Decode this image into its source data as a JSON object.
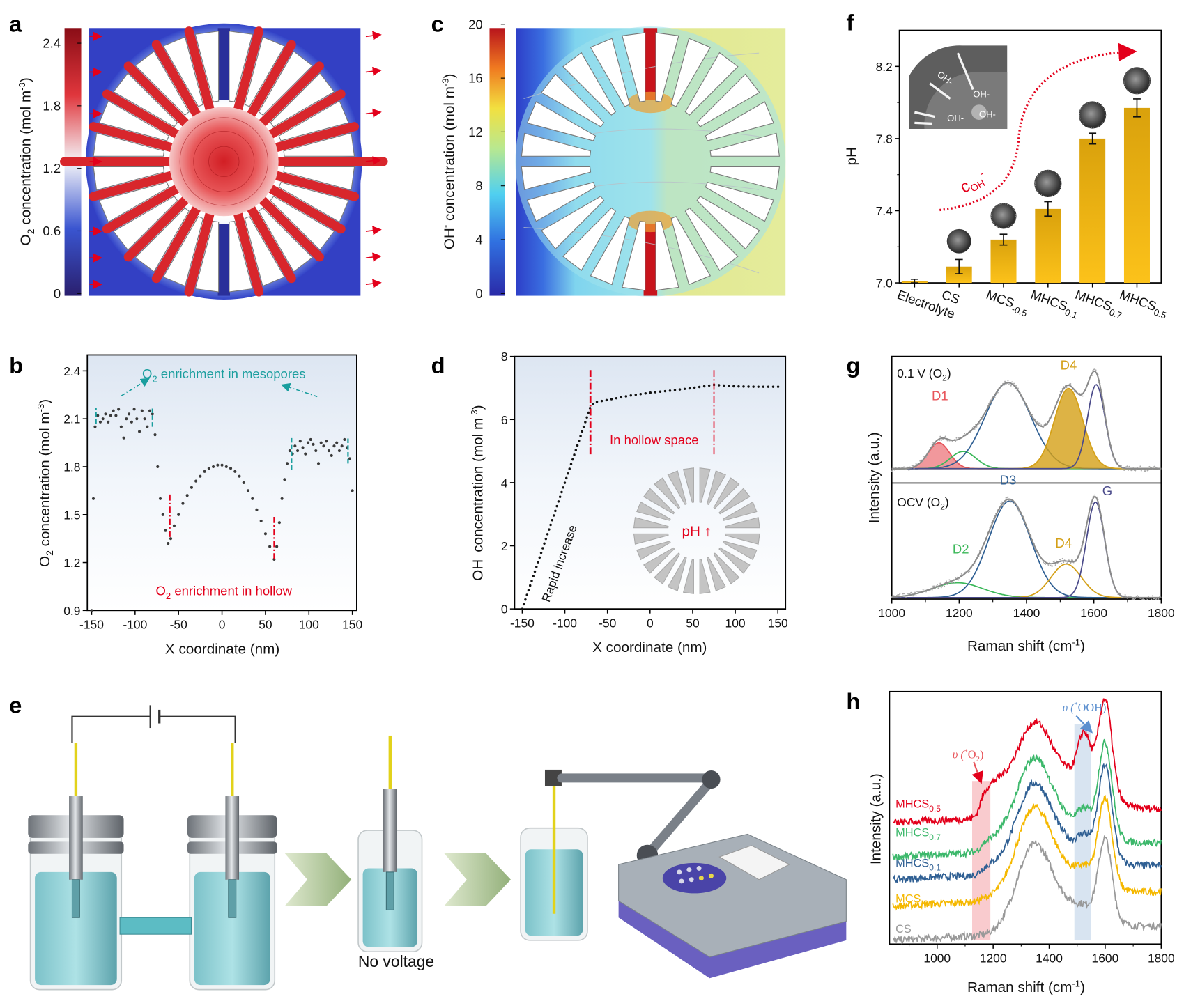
{
  "panel_labels": {
    "a": "a",
    "b": "b",
    "c": "c",
    "d": "d",
    "e": "e",
    "f": "f",
    "g": "g",
    "h": "h"
  },
  "colors": {
    "red": "#e3001b",
    "teal": "#1a9e9e",
    "gold": "#e9ad14",
    "blue": "#2f5f93",
    "green": "#3cb86b",
    "navy": "#4a4a8a",
    "gray": "#8a8a8a"
  },
  "chart_data": [
    {
      "id": "a",
      "type": "heatmap",
      "colorbar": {
        "ticks": [
          "0",
          "0.6",
          "1.2",
          "1.8",
          "2.4"
        ],
        "range": [
          0,
          2.4
        ],
        "colormap": "blue-white-red"
      },
      "ylabel": {
        "pre": "O",
        "sub": "2",
        "mid": " concentration (mol m",
        "sup": "-3",
        "post": ")"
      }
    },
    {
      "id": "c",
      "type": "heatmap",
      "colorbar": {
        "ticks": [
          "0",
          "4",
          "8",
          "12",
          "16",
          "20"
        ],
        "range": [
          0,
          20
        ],
        "colormap": "jet"
      },
      "ylabel": {
        "pre": "OH",
        "sup1": "-",
        "mid": " concentration (mol m",
        "sup": "-3",
        "post": ")"
      }
    },
    {
      "id": "b",
      "type": "scatter",
      "xlabel": "X coordinate (nm)",
      "ylabel": {
        "pre": "O",
        "sub": "2",
        "mid": " concentration (mol m",
        "sup": "-3",
        "post": ")"
      },
      "xlim": [
        -155,
        155
      ],
      "ylim": [
        0.9,
        2.5
      ],
      "xticks": [
        -150,
        -100,
        -50,
        0,
        50,
        100,
        150
      ],
      "yticks": [
        0.9,
        1.2,
        1.5,
        1.8,
        2.1,
        2.4
      ],
      "annotations": {
        "mesopores": {
          "pre": "O",
          "sub": "2",
          "post": " enrichment in mesopores"
        },
        "hollow": {
          "pre": "O",
          "sub": "2",
          "post": " enrichment in hollow"
        }
      },
      "points": [
        [
          -150,
          0.9
        ],
        [
          -148,
          1.6
        ],
        [
          -146,
          2.05
        ],
        [
          -143,
          2.12
        ],
        [
          -140,
          2.08
        ],
        [
          -137,
          2.1
        ],
        [
          -134,
          2.13
        ],
        [
          -131,
          2.08
        ],
        [
          -128,
          2.12
        ],
        [
          -125,
          2.15
        ],
        [
          -122,
          2.12
        ],
        [
          -119,
          2.16
        ],
        [
          -116,
          2.05
        ],
        [
          -113,
          1.98
        ],
        [
          -110,
          2.1
        ],
        [
          -107,
          2.13
        ],
        [
          -104,
          2.08
        ],
        [
          -101,
          2.16
        ],
        [
          -98,
          2.1
        ],
        [
          -95,
          2.02
        ],
        [
          -92,
          2.15
        ],
        [
          -89,
          2.1
        ],
        [
          -86,
          2.05
        ],
        [
          -83,
          2.15
        ],
        [
          -80,
          2.13
        ],
        [
          -77,
          2.0
        ],
        [
          -74,
          1.8
        ],
        [
          -71,
          1.6
        ],
        [
          -68,
          1.5
        ],
        [
          -65,
          1.4
        ],
        [
          -62,
          1.32
        ],
        [
          -59,
          1.35
        ],
        [
          -55,
          1.43
        ],
        [
          -50,
          1.5
        ],
        [
          -45,
          1.57
        ],
        [
          -40,
          1.62
        ],
        [
          -35,
          1.67
        ],
        [
          -30,
          1.71
        ],
        [
          -25,
          1.74
        ],
        [
          -20,
          1.77
        ],
        [
          -15,
          1.79
        ],
        [
          -10,
          1.8
        ],
        [
          -5,
          1.81
        ],
        [
          0,
          1.81
        ],
        [
          5,
          1.8
        ],
        [
          10,
          1.79
        ],
        [
          15,
          1.77
        ],
        [
          20,
          1.74
        ],
        [
          25,
          1.7
        ],
        [
          30,
          1.65
        ],
        [
          35,
          1.6
        ],
        [
          40,
          1.53
        ],
        [
          45,
          1.46
        ],
        [
          50,
          1.38
        ],
        [
          55,
          1.3
        ],
        [
          60,
          1.22
        ],
        [
          63,
          1.3
        ],
        [
          66,
          1.45
        ],
        [
          69,
          1.6
        ],
        [
          72,
          1.72
        ],
        [
          75,
          1.82
        ],
        [
          78,
          1.9
        ],
        [
          81,
          1.88
        ],
        [
          84,
          1.93
        ],
        [
          87,
          1.9
        ],
        [
          90,
          1.96
        ],
        [
          93,
          1.92
        ],
        [
          96,
          1.88
        ],
        [
          99,
          1.95
        ],
        [
          102,
          1.97
        ],
        [
          105,
          1.94
        ],
        [
          108,
          1.9
        ],
        [
          111,
          1.82
        ],
        [
          114,
          1.95
        ],
        [
          117,
          1.93
        ],
        [
          120,
          1.96
        ],
        [
          123,
          1.9
        ],
        [
          126,
          1.87
        ],
        [
          129,
          1.93
        ],
        [
          132,
          1.95
        ],
        [
          135,
          1.9
        ],
        [
          138,
          1.93
        ],
        [
          141,
          1.97
        ],
        [
          144,
          1.92
        ],
        [
          147,
          1.85
        ],
        [
          150,
          1.65
        ]
      ]
    },
    {
      "id": "d",
      "type": "line",
      "xlabel": "X coordinate (nm)",
      "ylabel": {
        "pre": "OH",
        "sup1": "-",
        "mid": " concentration (mol m",
        "sup": "-3",
        "post": ")"
      },
      "xlim": [
        -159,
        159
      ],
      "ylim": [
        0,
        8
      ],
      "xticks": [
        -150,
        -100,
        -50,
        0,
        50,
        100,
        150
      ],
      "yticks": [
        0,
        2,
        4,
        6,
        8
      ],
      "annotations": {
        "rapid": "Rapid increase",
        "hollow": "In hollow space",
        "ph": "pH ↑"
      },
      "points": [
        [
          -150,
          0
        ],
        [
          -70,
          6.4
        ],
        [
          -65,
          6.55
        ],
        [
          -50,
          6.62
        ],
        [
          -25,
          6.75
        ],
        [
          0,
          6.85
        ],
        [
          25,
          6.92
        ],
        [
          50,
          7.0
        ],
        [
          75,
          7.1
        ],
        [
          100,
          7.05
        ],
        [
          125,
          7.04
        ],
        [
          155,
          7.04
        ]
      ]
    },
    {
      "id": "f",
      "type": "bar",
      "ylabel": "pH",
      "ylim": [
        7.0,
        8.4
      ],
      "yticks": [
        "7.0",
        "7.4",
        "7.8",
        "8.2"
      ],
      "categories": [
        {
          "main": "Electrolyte",
          "sub": ""
        },
        {
          "main": "CS",
          "sub": ""
        },
        {
          "main": "MCS",
          "sub": "-0.5"
        },
        {
          "main": "MHCS",
          "sub": "0.1"
        },
        {
          "main": "MHCS",
          "sub": "0.7"
        },
        {
          "main": "MHCS",
          "sub": "0.5"
        }
      ],
      "values": [
        7.01,
        7.09,
        7.24,
        7.41,
        7.8,
        7.97
      ],
      "errors": [
        0.01,
        0.04,
        0.03,
        0.04,
        0.03,
        0.05
      ],
      "trend_label": {
        "pre": "c",
        "sub": "OH",
        "sup": "-"
      },
      "inset_labels": [
        "OH-",
        "OH-",
        "OH-",
        "OH-"
      ]
    },
    {
      "id": "g",
      "type": "line",
      "xlabel": {
        "pre": "Raman shift (cm",
        "sup": "-1",
        "post": ")"
      },
      "ylabel": "Intensity (a.u.)",
      "xlim": [
        1000,
        1800
      ],
      "xticks": [
        1000,
        1200,
        1400,
        1600,
        1800
      ],
      "panels": [
        {
          "title": {
            "pre": "0.1 V (O",
            "sub": "2",
            "post": ")"
          },
          "components": [
            {
              "name": "D1",
              "center": 1140,
              "amp": 0.27,
              "sigma": 32,
              "color": "#e8545a",
              "filled": true,
              "show_label": true
            },
            {
              "name": "D2",
              "center": 1212,
              "amp": 0.18,
              "sigma": 38,
              "color": "#3cb85a",
              "filled": false,
              "show_label": false
            },
            {
              "name": "D3",
              "center": 1345,
              "amp": 0.9,
              "sigma": 68,
              "color": "#2f5f93",
              "filled": false,
              "show_label": false
            },
            {
              "name": "D4",
              "center": 1525,
              "amp": 0.84,
              "sigma": 42,
              "color": "#d4a017",
              "filled": true,
              "show_label": true
            },
            {
              "name": "G",
              "center": 1607,
              "amp": 0.88,
              "sigma": 26,
              "color": "#4a4a8a",
              "filled": false,
              "show_label": false
            }
          ]
        },
        {
          "title": {
            "pre": "OCV (O",
            "sub": "2",
            "post": ")"
          },
          "components": [
            {
              "name": "D2",
              "center": 1195,
              "amp": 0.15,
              "sigma": 75,
              "color": "#3cb85a",
              "filled": false,
              "show_label": true
            },
            {
              "name": "D3",
              "center": 1350,
              "amp": 0.98,
              "sigma": 62,
              "color": "#2f5f93",
              "filled": false,
              "show_label": true
            },
            {
              "name": "D4",
              "center": 1518,
              "amp": 0.34,
              "sigma": 45,
              "color": "#d4a017",
              "filled": false,
              "show_label": true
            },
            {
              "name": "G",
              "center": 1605,
              "amp": 0.97,
              "sigma": 27,
              "color": "#4a4a8a",
              "filled": false,
              "show_label": true
            }
          ]
        }
      ]
    },
    {
      "id": "h",
      "type": "line",
      "xlabel": {
        "pre": "Raman shift (cm",
        "sup": "-1",
        "post": ")"
      },
      "ylabel": "Intensity (a.u.)",
      "xlim": [
        830,
        1800
      ],
      "ylim": [
        0,
        10
      ],
      "xticks": [
        1000,
        1200,
        1400,
        1600,
        1800
      ],
      "bands": [
        {
          "label": {
            "pre": "υ (",
            "sup": "*",
            "mid": "O",
            "sub": "2",
            "post": ")"
          },
          "range": [
            1125,
            1190
          ],
          "color": "#f4a0a6"
        },
        {
          "label": {
            "pre": "υ (",
            "sup": "*",
            "mid": "OOH",
            "sub": "",
            "post": ")"
          },
          "range": [
            1490,
            1550
          ],
          "color": "#b8cde6"
        }
      ],
      "series": [
        {
          "name": "MHCS",
          "sub": "0.5",
          "color": "#e3001b",
          "baseline": 4.8,
          "D": 3.3,
          "G": 3.7,
          "broad": 1.4,
          "O2": 1.2,
          "OOH": 1.8
        },
        {
          "name": "MHCS",
          "sub": "0.7",
          "color": "#3cb86b",
          "baseline": 3.45,
          "D": 3.4,
          "G": 3.6,
          "broad": 0.9,
          "O2": 0.4,
          "OOH": 0.6
        },
        {
          "name": "MHCS",
          "sub": "0.1",
          "color": "#2f5f93",
          "baseline": 2.55,
          "D": 3.3,
          "G": 3.6,
          "broad": 0.9,
          "O2": 0.3,
          "OOH": 0.5
        },
        {
          "name": "MCS",
          "sub": "-0.5",
          "color": "#f5b800",
          "baseline": 1.5,
          "D": 3.4,
          "G": 3.4,
          "broad": 0.9,
          "O2": 0.1,
          "OOH": 0.3
        },
        {
          "name": "CS",
          "sub": "",
          "color": "#999999",
          "baseline": 0.15,
          "D": 3.3,
          "G": 3.1,
          "broad": 0.9,
          "O2": 0,
          "OOH": 0.1
        }
      ]
    }
  ],
  "panel_e": {
    "caption": "No voltage"
  }
}
